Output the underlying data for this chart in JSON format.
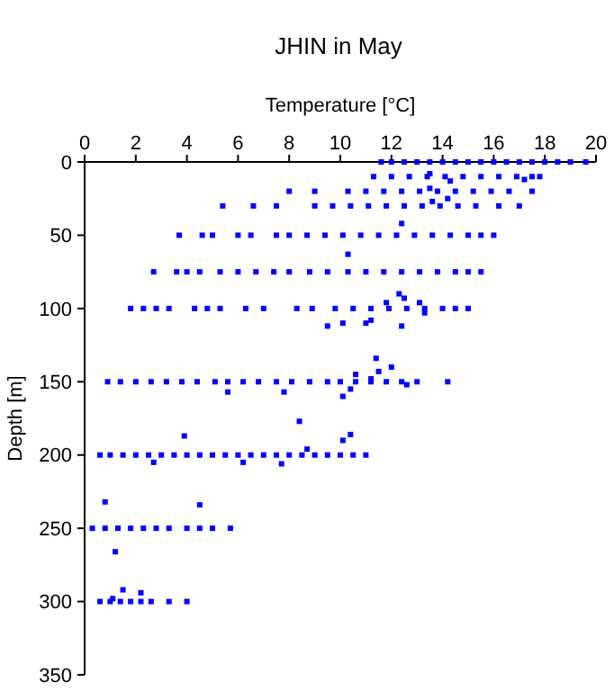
{
  "chart_data": {
    "type": "scatter",
    "title": "JHIN in May",
    "xlabel": "Temperature [°C]",
    "ylabel": "Depth [m]",
    "xlim": [
      0,
      20
    ],
    "xticks": [
      0,
      2,
      4,
      6,
      8,
      10,
      12,
      14,
      16,
      18,
      20
    ],
    "ylim": [
      350,
      0
    ],
    "yticks": [
      0,
      50,
      100,
      150,
      200,
      250,
      300,
      350
    ],
    "grid": false,
    "marker": "square",
    "series": [
      {
        "color": "#0000ff",
        "x": [
          11.6,
          12,
          12.5,
          13,
          13.5,
          14,
          14.5,
          15,
          15.5,
          16,
          16.5,
          17,
          17.5,
          18,
          18.5,
          19,
          19.6,
          11.3,
          12,
          12.7,
          13.4,
          14.1,
          14.8,
          15.5,
          16.2,
          16.9,
          17.5,
          17.8,
          13.5,
          14.3,
          17.2,
          8,
          9,
          10.3,
          11,
          11.7,
          12.4,
          13.1,
          13.8,
          14.5,
          15.2,
          15.9,
          16.6,
          17.5,
          13.5,
          14.2,
          13.6,
          5.4,
          6.6,
          7.5,
          9,
          9.7,
          10.4,
          11.1,
          11.8,
          12.5,
          13.2,
          13.9,
          14.6,
          15.3,
          16.2,
          17,
          12.4,
          3.7,
          4.6,
          5,
          6,
          6.5,
          7.5,
          8,
          8.7,
          9.4,
          10.1,
          10.8,
          11.5,
          12.2,
          12.9,
          13.6,
          14.3,
          15,
          15.5,
          16,
          10.3,
          2.7,
          3.6,
          4,
          4.5,
          5.3,
          6,
          6.7,
          7.4,
          8,
          8.8,
          9.5,
          10.3,
          11,
          11.7,
          12.4,
          13.1,
          13.8,
          14.5,
          15,
          15.5,
          1.8,
          2.3,
          2.8,
          3.3,
          4.3,
          4.8,
          5.3,
          6.3,
          7,
          8.3,
          8.9,
          9.8,
          10.5,
          11.2,
          11.9,
          12.6,
          13.3,
          14,
          14.5,
          15,
          12.3,
          12.5,
          11.8,
          13.1,
          13.3,
          9.5,
          10.1,
          11,
          11.2,
          12.4,
          0.9,
          1.4,
          2,
          2.6,
          3.2,
          3.8,
          4.4,
          5.1,
          5.6,
          6.2,
          6.8,
          7.5,
          8.1,
          8.8,
          9.5,
          10,
          10.6,
          11.2,
          11.8,
          12.4,
          13,
          14.2,
          11.4,
          11.5,
          12,
          10.6,
          11.2,
          12.6,
          5.6,
          7.8,
          10.1,
          10.4,
          0.6,
          1,
          1.5,
          2,
          2.5,
          3,
          3.5,
          4,
          4.5,
          5,
          5.5,
          6,
          6.5,
          7,
          7.5,
          8,
          8.5,
          9,
          9.5,
          10,
          10.5,
          11,
          3.9,
          8.4,
          8.7,
          10.1,
          10.4,
          2.7,
          6.2,
          7.7,
          0.3,
          0.8,
          1.3,
          1.8,
          2.3,
          2.8,
          3.3,
          4,
          4.5,
          5,
          5.7,
          0.8,
          4.5,
          1.2,
          0.6,
          1,
          1.4,
          1.8,
          2.2,
          2.6,
          3.3,
          4,
          1.5,
          2.2,
          1.1
        ],
        "values": [
          0,
          0,
          0,
          0,
          0,
          0,
          0,
          0,
          0,
          0,
          0,
          0,
          0,
          0,
          0,
          0,
          0,
          10,
          10,
          10,
          10,
          10,
          10,
          10,
          10,
          10,
          10,
          10,
          8,
          13,
          12,
          20,
          20,
          20,
          20,
          20,
          20,
          20,
          20,
          20,
          20,
          20,
          20,
          20,
          18,
          25,
          27,
          30,
          30,
          30,
          30,
          30,
          30,
          30,
          30,
          30,
          30,
          30,
          30,
          30,
          30,
          30,
          42,
          50,
          50,
          50,
          50,
          50,
          50,
          50,
          50,
          50,
          50,
          50,
          50,
          50,
          50,
          50,
          50,
          50,
          50,
          50,
          63,
          75,
          75,
          75,
          75,
          75,
          75,
          75,
          75,
          75,
          75,
          75,
          75,
          75,
          75,
          75,
          75,
          75,
          75,
          75,
          75,
          100,
          100,
          100,
          100,
          100,
          100,
          100,
          100,
          100,
          100,
          100,
          100,
          100,
          100,
          100,
          100,
          100,
          100,
          100,
          100,
          90,
          93,
          96,
          96,
          103,
          112,
          110,
          110,
          108,
          112,
          150,
          150,
          150,
          150,
          150,
          150,
          150,
          150,
          150,
          150,
          150,
          150,
          150,
          150,
          150,
          150,
          150,
          150,
          150,
          150,
          150,
          150,
          134,
          143,
          140,
          145,
          148,
          152,
          157,
          157,
          160,
          155,
          200,
          200,
          200,
          200,
          200,
          200,
          200,
          200,
          200,
          200,
          200,
          200,
          200,
          200,
          200,
          200,
          200,
          200,
          200,
          200,
          200,
          200,
          187,
          177,
          196,
          190,
          186,
          205,
          205,
          206,
          250,
          250,
          250,
          250,
          250,
          250,
          250,
          250,
          250,
          250,
          250,
          232,
          234,
          266,
          300,
          300,
          300,
          300,
          300,
          300,
          300,
          300,
          292,
          294,
          298
        ]
      }
    ]
  }
}
